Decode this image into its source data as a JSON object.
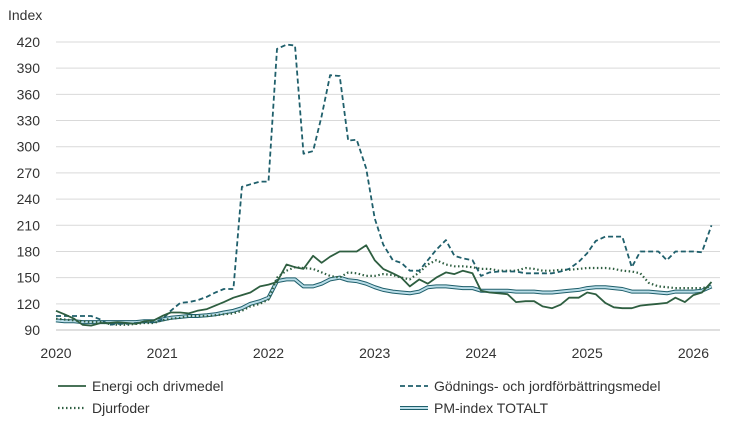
{
  "chart_data": {
    "type": "line",
    "ylabel": "Index",
    "ylim": [
      90,
      420
    ],
    "yticks": [
      90,
      120,
      150,
      180,
      210,
      240,
      270,
      300,
      330,
      360,
      390,
      420
    ],
    "xlim": [
      2020.0,
      2026.25
    ],
    "xticks": [
      "2020",
      "2021",
      "2022",
      "2023",
      "2024",
      "2025",
      "2026"
    ],
    "grid": "horizontal",
    "legend_position": "bottom",
    "colors": {
      "energi": "#2e5e40",
      "godnings": "#1f5f6b",
      "djurfoder": "#2e5e40",
      "pm_outer": "#1f5f6b",
      "pm_inner": "#b9dde8",
      "grid": "#d9d9d9"
    },
    "series": [
      {
        "name": "Energi och drivmedel",
        "key": "energi",
        "style": "solid",
        "points": [
          [
            2020.0,
            112
          ],
          [
            2020.08,
            108
          ],
          [
            2020.17,
            103
          ],
          [
            2020.25,
            96
          ],
          [
            2020.33,
            95
          ],
          [
            2020.42,
            98
          ],
          [
            2020.5,
            98
          ],
          [
            2020.58,
            99
          ],
          [
            2020.67,
            98
          ],
          [
            2020.75,
            97
          ],
          [
            2020.83,
            100
          ],
          [
            2020.92,
            101
          ],
          [
            2021.0,
            106
          ],
          [
            2021.08,
            110
          ],
          [
            2021.17,
            110
          ],
          [
            2021.25,
            109
          ],
          [
            2021.33,
            112
          ],
          [
            2021.42,
            114
          ],
          [
            2021.5,
            118
          ],
          [
            2021.58,
            122
          ],
          [
            2021.67,
            127
          ],
          [
            2021.75,
            130
          ],
          [
            2021.83,
            133
          ],
          [
            2021.92,
            140
          ],
          [
            2022.0,
            142
          ],
          [
            2022.08,
            145
          ],
          [
            2022.17,
            165
          ],
          [
            2022.25,
            162
          ],
          [
            2022.33,
            160
          ],
          [
            2022.42,
            175
          ],
          [
            2022.5,
            167
          ],
          [
            2022.58,
            174
          ],
          [
            2022.67,
            180
          ],
          [
            2022.75,
            180
          ],
          [
            2022.83,
            180
          ],
          [
            2022.92,
            187
          ],
          [
            2023.0,
            170
          ],
          [
            2023.08,
            160
          ],
          [
            2023.17,
            155
          ],
          [
            2023.25,
            150
          ],
          [
            2023.33,
            140
          ],
          [
            2023.42,
            148
          ],
          [
            2023.5,
            143
          ],
          [
            2023.58,
            150
          ],
          [
            2023.67,
            156
          ],
          [
            2023.75,
            154
          ],
          [
            2023.83,
            158
          ],
          [
            2023.92,
            155
          ],
          [
            2024.0,
            135
          ],
          [
            2024.08,
            133
          ],
          [
            2024.17,
            132
          ],
          [
            2024.25,
            131
          ],
          [
            2024.33,
            122
          ],
          [
            2024.42,
            123
          ],
          [
            2024.5,
            123
          ],
          [
            2024.58,
            117
          ],
          [
            2024.67,
            115
          ],
          [
            2024.75,
            119
          ],
          [
            2024.83,
            127
          ],
          [
            2024.92,
            127
          ],
          [
            2025.0,
            133
          ],
          [
            2025.08,
            131
          ],
          [
            2025.17,
            121
          ],
          [
            2025.25,
            116
          ],
          [
            2025.33,
            115
          ],
          [
            2025.42,
            115
          ],
          [
            2025.5,
            118
          ],
          [
            2025.58,
            119
          ],
          [
            2025.67,
            120
          ],
          [
            2025.75,
            121
          ],
          [
            2025.83,
            127
          ],
          [
            2025.92,
            122
          ],
          [
            2026.0,
            130
          ],
          [
            2026.08,
            133
          ],
          [
            2026.17,
            145
          ]
        ]
      },
      {
        "name": "Gödnings- och jordförbättringsmedel",
        "key": "godnings",
        "style": "dashed",
        "points": [
          [
            2020.0,
            106
          ],
          [
            2020.08,
            106
          ],
          [
            2020.17,
            106
          ],
          [
            2020.25,
            106
          ],
          [
            2020.33,
            106
          ],
          [
            2020.42,
            102
          ],
          [
            2020.5,
            96
          ],
          [
            2020.58,
            97
          ],
          [
            2020.67,
            97
          ],
          [
            2020.75,
            98
          ],
          [
            2020.83,
            99
          ],
          [
            2020.92,
            99
          ],
          [
            2021.0,
            102
          ],
          [
            2021.08,
            112
          ],
          [
            2021.17,
            121
          ],
          [
            2021.25,
            122
          ],
          [
            2021.33,
            124
          ],
          [
            2021.42,
            128
          ],
          [
            2021.5,
            133
          ],
          [
            2021.58,
            137
          ],
          [
            2021.67,
            137
          ],
          [
            2021.75,
            254
          ],
          [
            2021.83,
            257
          ],
          [
            2021.92,
            260
          ],
          [
            2022.0,
            260
          ],
          [
            2022.08,
            412
          ],
          [
            2022.17,
            417
          ],
          [
            2022.25,
            416
          ],
          [
            2022.33,
            292
          ],
          [
            2022.42,
            295
          ],
          [
            2022.5,
            335
          ],
          [
            2022.58,
            382
          ],
          [
            2022.67,
            381
          ],
          [
            2022.75,
            307
          ],
          [
            2022.83,
            308
          ],
          [
            2022.92,
            275
          ],
          [
            2023.0,
            218
          ],
          [
            2023.08,
            188
          ],
          [
            2023.17,
            170
          ],
          [
            2023.25,
            167
          ],
          [
            2023.33,
            158
          ],
          [
            2023.42,
            158
          ],
          [
            2023.5,
            170
          ],
          [
            2023.58,
            182
          ],
          [
            2023.67,
            193
          ],
          [
            2023.75,
            175
          ],
          [
            2023.83,
            172
          ],
          [
            2023.92,
            170
          ],
          [
            2024.0,
            152
          ],
          [
            2024.08,
            156
          ],
          [
            2024.17,
            157
          ],
          [
            2024.25,
            157
          ],
          [
            2024.33,
            157
          ],
          [
            2024.42,
            155
          ],
          [
            2024.5,
            155
          ],
          [
            2024.58,
            155
          ],
          [
            2024.67,
            155
          ],
          [
            2024.75,
            157
          ],
          [
            2024.83,
            160
          ],
          [
            2024.92,
            168
          ],
          [
            2025.0,
            178
          ],
          [
            2025.08,
            192
          ],
          [
            2025.17,
            197
          ],
          [
            2025.25,
            197
          ],
          [
            2025.33,
            197
          ],
          [
            2025.42,
            162
          ],
          [
            2025.5,
            180
          ],
          [
            2025.58,
            180
          ],
          [
            2025.67,
            180
          ],
          [
            2025.75,
            170
          ],
          [
            2025.83,
            180
          ],
          [
            2025.92,
            180
          ],
          [
            2026.0,
            180
          ],
          [
            2026.08,
            179
          ],
          [
            2026.17,
            210
          ]
        ]
      },
      {
        "name": "Djurfoder",
        "key": "djurfoder",
        "style": "dotted",
        "points": [
          [
            2020.0,
            103
          ],
          [
            2020.08,
            102
          ],
          [
            2020.17,
            101
          ],
          [
            2020.25,
            100
          ],
          [
            2020.33,
            99
          ],
          [
            2020.42,
            99
          ],
          [
            2020.5,
            97
          ],
          [
            2020.58,
            96
          ],
          [
            2020.67,
            96
          ],
          [
            2020.75,
            97
          ],
          [
            2020.83,
            98
          ],
          [
            2020.92,
            98
          ],
          [
            2021.0,
            101
          ],
          [
            2021.08,
            103
          ],
          [
            2021.17,
            104
          ],
          [
            2021.25,
            106
          ],
          [
            2021.33,
            106
          ],
          [
            2021.42,
            106
          ],
          [
            2021.5,
            107
          ],
          [
            2021.58,
            108
          ],
          [
            2021.67,
            109
          ],
          [
            2021.75,
            112
          ],
          [
            2021.83,
            117
          ],
          [
            2021.92,
            120
          ],
          [
            2022.0,
            125
          ],
          [
            2022.08,
            150
          ],
          [
            2022.17,
            158
          ],
          [
            2022.25,
            162
          ],
          [
            2022.33,
            161
          ],
          [
            2022.42,
            160
          ],
          [
            2022.5,
            156
          ],
          [
            2022.58,
            152
          ],
          [
            2022.67,
            150
          ],
          [
            2022.75,
            156
          ],
          [
            2022.83,
            155
          ],
          [
            2022.92,
            152
          ],
          [
            2023.0,
            152
          ],
          [
            2023.08,
            154
          ],
          [
            2023.17,
            153
          ],
          [
            2023.25,
            150
          ],
          [
            2023.33,
            148
          ],
          [
            2023.42,
            156
          ],
          [
            2023.5,
            165
          ],
          [
            2023.58,
            170
          ],
          [
            2023.67,
            165
          ],
          [
            2023.75,
            163
          ],
          [
            2023.83,
            163
          ],
          [
            2023.92,
            162
          ],
          [
            2024.0,
            160
          ],
          [
            2024.08,
            160
          ],
          [
            2024.17,
            158
          ],
          [
            2024.25,
            158
          ],
          [
            2024.33,
            158
          ],
          [
            2024.42,
            161
          ],
          [
            2024.5,
            160
          ],
          [
            2024.58,
            158
          ],
          [
            2024.67,
            158
          ],
          [
            2024.75,
            159
          ],
          [
            2024.83,
            159
          ],
          [
            2024.92,
            160
          ],
          [
            2025.0,
            161
          ],
          [
            2025.08,
            161
          ],
          [
            2025.17,
            161
          ],
          [
            2025.25,
            160
          ],
          [
            2025.33,
            158
          ],
          [
            2025.42,
            157
          ],
          [
            2025.5,
            155
          ],
          [
            2025.58,
            144
          ],
          [
            2025.67,
            140
          ],
          [
            2025.75,
            139
          ],
          [
            2025.83,
            138
          ],
          [
            2025.92,
            138
          ],
          [
            2026.0,
            138
          ],
          [
            2026.08,
            138
          ],
          [
            2026.17,
            140
          ]
        ]
      },
      {
        "name": "PM-index TOTALT",
        "key": "pm",
        "style": "double",
        "points": [
          [
            2020.0,
            101
          ],
          [
            2020.08,
            100
          ],
          [
            2020.17,
            100
          ],
          [
            2020.25,
            99
          ],
          [
            2020.33,
            99
          ],
          [
            2020.42,
            99
          ],
          [
            2020.5,
            99
          ],
          [
            2020.58,
            99
          ],
          [
            2020.67,
            99
          ],
          [
            2020.75,
            99
          ],
          [
            2020.83,
            100
          ],
          [
            2020.92,
            100
          ],
          [
            2021.0,
            102
          ],
          [
            2021.08,
            104
          ],
          [
            2021.17,
            105
          ],
          [
            2021.25,
            106
          ],
          [
            2021.33,
            106
          ],
          [
            2021.42,
            107
          ],
          [
            2021.5,
            108
          ],
          [
            2021.58,
            110
          ],
          [
            2021.67,
            112
          ],
          [
            2021.75,
            115
          ],
          [
            2021.83,
            120
          ],
          [
            2021.92,
            123
          ],
          [
            2022.0,
            127
          ],
          [
            2022.08,
            146
          ],
          [
            2022.17,
            148
          ],
          [
            2022.25,
            148
          ],
          [
            2022.33,
            140
          ],
          [
            2022.42,
            140
          ],
          [
            2022.5,
            143
          ],
          [
            2022.58,
            148
          ],
          [
            2022.67,
            150
          ],
          [
            2022.75,
            147
          ],
          [
            2022.83,
            146
          ],
          [
            2022.92,
            143
          ],
          [
            2023.0,
            139
          ],
          [
            2023.08,
            136
          ],
          [
            2023.17,
            134
          ],
          [
            2023.25,
            133
          ],
          [
            2023.33,
            132
          ],
          [
            2023.42,
            134
          ],
          [
            2023.5,
            139
          ],
          [
            2023.58,
            140
          ],
          [
            2023.67,
            140
          ],
          [
            2023.75,
            139
          ],
          [
            2023.83,
            138
          ],
          [
            2023.92,
            138
          ],
          [
            2024.0,
            135
          ],
          [
            2024.08,
            135
          ],
          [
            2024.17,
            135
          ],
          [
            2024.25,
            135
          ],
          [
            2024.33,
            134
          ],
          [
            2024.42,
            134
          ],
          [
            2024.5,
            134
          ],
          [
            2024.58,
            133
          ],
          [
            2024.67,
            133
          ],
          [
            2024.75,
            134
          ],
          [
            2024.83,
            135
          ],
          [
            2024.92,
            136
          ],
          [
            2025.0,
            138
          ],
          [
            2025.08,
            139
          ],
          [
            2025.17,
            139
          ],
          [
            2025.25,
            138
          ],
          [
            2025.33,
            137
          ],
          [
            2025.42,
            134
          ],
          [
            2025.5,
            134
          ],
          [
            2025.58,
            134
          ],
          [
            2025.67,
            133
          ],
          [
            2025.75,
            132
          ],
          [
            2025.83,
            134
          ],
          [
            2025.92,
            134
          ],
          [
            2026.0,
            134
          ],
          [
            2026.08,
            135
          ],
          [
            2026.17,
            140
          ]
        ]
      }
    ]
  }
}
